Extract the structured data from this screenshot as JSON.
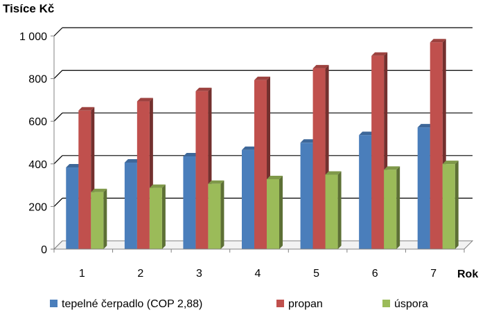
{
  "chart_data": {
    "type": "bar",
    "title": "Tisíce Kč",
    "xlabel": "Rok",
    "ylabel": "",
    "ylim": [
      0,
      1000
    ],
    "yticks": [
      0,
      200,
      400,
      600,
      800,
      1000
    ],
    "ytick_labels": [
      "0",
      "200",
      "400",
      "600",
      "800",
      "1 000"
    ],
    "categories": [
      "1",
      "2",
      "3",
      "4",
      "5",
      "6",
      "7"
    ],
    "grid": true,
    "legend_position": "bottom",
    "series": [
      {
        "name": "tepelné čerpadlo (COP 2,88)",
        "color": "#4A7EBB",
        "values": [
          383,
          406,
          435,
          465,
          499,
          535,
          571
        ]
      },
      {
        "name": "propan",
        "color": "#C0504D",
        "values": [
          650,
          693,
          741,
          793,
          848,
          907,
          970
        ]
      },
      {
        "name": "úspora",
        "color": "#9BBB59",
        "values": [
          267,
          287,
          306,
          328,
          349,
          372,
          399
        ]
      }
    ]
  }
}
